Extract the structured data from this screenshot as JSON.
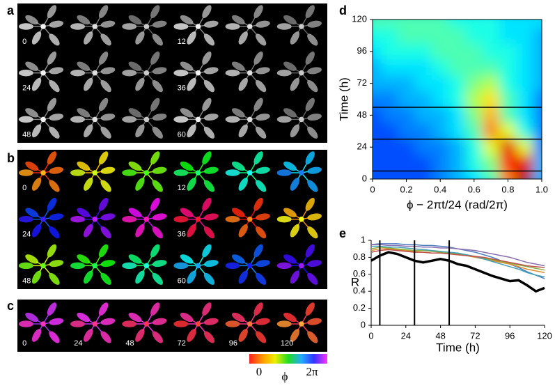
{
  "panels": {
    "a": {
      "label": "a",
      "time_labels": [
        "0",
        "12",
        "24",
        "36",
        "48",
        "60"
      ]
    },
    "b": {
      "label": "b",
      "time_labels": [
        "0",
        "12",
        "24",
        "36",
        "48",
        "60"
      ]
    },
    "c": {
      "label": "c",
      "time_labels": [
        "0",
        "24",
        "48",
        "72",
        "96",
        "120"
      ]
    }
  },
  "colorbar": {
    "min_label": "0",
    "max_label": "2π",
    "symbol": "ϕ"
  },
  "chart_data": [
    {
      "type": "contour",
      "label": "d",
      "xlabel": "ϕ − 2πt/24 (rad/2π)",
      "ylabel": "Time (h)",
      "xlim": [
        0,
        1
      ],
      "xticks": [
        0,
        0.2,
        0.4,
        0.6,
        0.8,
        {
          "value": 1,
          "label": "1.0"
        }
      ],
      "ylim": [
        0,
        120
      ],
      "yticks": [
        0,
        24,
        48,
        72,
        96,
        120
      ],
      "grid_x": [
        0,
        0.1,
        0.2,
        0.3,
        0.4,
        0.5,
        0.6,
        0.7,
        0.8,
        0.9,
        1
      ],
      "grid_y": [
        0,
        12,
        24,
        36,
        48,
        60,
        72,
        84,
        96,
        108,
        120
      ],
      "z": [
        [
          0.2,
          0.2,
          0.2,
          0.2,
          0.25,
          0.3,
          0.35,
          0.45,
          0.75,
          0.95,
          0.3
        ],
        [
          0.2,
          0.2,
          0.2,
          0.2,
          0.25,
          0.3,
          0.4,
          0.5,
          0.85,
          0.9,
          0.3
        ],
        [
          0.2,
          0.2,
          0.2,
          0.25,
          0.25,
          0.3,
          0.4,
          0.6,
          0.9,
          0.6,
          0.25
        ],
        [
          0.2,
          0.2,
          0.25,
          0.25,
          0.3,
          0.35,
          0.45,
          0.75,
          0.6,
          0.4,
          0.25
        ],
        [
          0.2,
          0.25,
          0.25,
          0.3,
          0.3,
          0.35,
          0.5,
          0.7,
          0.45,
          0.35,
          0.25
        ],
        [
          0.25,
          0.25,
          0.3,
          0.3,
          0.35,
          0.4,
          0.55,
          0.65,
          0.45,
          0.35,
          0.25
        ],
        [
          0.3,
          0.3,
          0.3,
          0.35,
          0.35,
          0.4,
          0.5,
          0.55,
          0.4,
          0.35,
          0.3
        ],
        [
          0.3,
          0.35,
          0.35,
          0.35,
          0.4,
          0.45,
          0.45,
          0.45,
          0.4,
          0.35,
          0.3
        ],
        [
          0.35,
          0.4,
          0.4,
          0.4,
          0.45,
          0.45,
          0.45,
          0.4,
          0.4,
          0.35,
          0.3
        ],
        [
          0.4,
          0.4,
          0.45,
          0.45,
          0.45,
          0.45,
          0.4,
          0.4,
          0.35,
          0.35,
          0.3
        ],
        [
          0.45,
          0.45,
          0.45,
          0.45,
          0.45,
          0.4,
          0.4,
          0.4,
          0.35,
          0.35,
          0.35
        ]
      ],
      "hlines": [
        6,
        30,
        54
      ]
    },
    {
      "type": "line",
      "label": "e",
      "xlabel": "Time (h)",
      "ylabel": "R",
      "xlim": [
        0,
        120
      ],
      "xticks": [
        0,
        24,
        48,
        72,
        96,
        120
      ],
      "ylim": [
        0,
        1
      ],
      "yticks": [
        0,
        0.2,
        0.4,
        0.6,
        0.8,
        1
      ],
      "x": [
        0,
        6,
        12,
        18,
        24,
        30,
        36,
        42,
        48,
        54,
        60,
        66,
        72,
        78,
        84,
        90,
        96,
        102,
        108,
        114,
        120
      ],
      "vlines": [
        6,
        30,
        54
      ],
      "series": [
        {
          "color": "#4a7bbf",
          "values": [
            0.95,
            0.96,
            0.96,
            0.96,
            0.95,
            0.95,
            0.94,
            0.94,
            0.93,
            0.92,
            0.9,
            0.88,
            0.86,
            0.83,
            0.8,
            0.76,
            0.72,
            0.68,
            0.63,
            0.59,
            0.55
          ]
        },
        {
          "color": "#e08a2c",
          "values": [
            0.88,
            0.9,
            0.9,
            0.89,
            0.88,
            0.87,
            0.86,
            0.85,
            0.85,
            0.84,
            0.83,
            0.82,
            0.8,
            0.78,
            0.76,
            0.74,
            0.72,
            0.69,
            0.66,
            0.64,
            0.62
          ]
        },
        {
          "color": "#8a6fb0",
          "values": [
            0.95,
            0.95,
            0.94,
            0.94,
            0.93,
            0.93,
            0.92,
            0.92,
            0.91,
            0.91,
            0.9,
            0.89,
            0.88,
            0.86,
            0.84,
            0.82,
            0.8,
            0.77,
            0.74,
            0.72,
            0.7
          ]
        },
        {
          "color": "#8bb040",
          "values": [
            0.9,
            0.92,
            0.91,
            0.9,
            0.89,
            0.88,
            0.88,
            0.87,
            0.86,
            0.85,
            0.84,
            0.83,
            0.81,
            0.79,
            0.77,
            0.75,
            0.73,
            0.71,
            0.69,
            0.67,
            0.65
          ]
        },
        {
          "color": "#40a0b8",
          "values": [
            0.93,
            0.93,
            0.92,
            0.92,
            0.91,
            0.9,
            0.89,
            0.88,
            0.87,
            0.86,
            0.85,
            0.83,
            0.81,
            0.78,
            0.75,
            0.72,
            0.69,
            0.66,
            0.62,
            0.59,
            0.57
          ]
        },
        {
          "color": "#c0504d",
          "values": [
            0.86,
            0.88,
            0.89,
            0.88,
            0.87,
            0.86,
            0.86,
            0.85,
            0.85,
            0.84,
            0.83,
            0.82,
            0.81,
            0.8,
            0.78,
            0.76,
            0.74,
            0.72,
            0.7,
            0.69,
            0.68
          ]
        },
        {
          "color": "#000000",
          "values": [
            0.76,
            0.82,
            0.86,
            0.84,
            0.8,
            0.76,
            0.74,
            0.76,
            0.78,
            0.76,
            0.72,
            0.7,
            0.66,
            0.62,
            0.58,
            0.55,
            0.52,
            0.53,
            0.47,
            0.4,
            0.44
          ]
        }
      ]
    }
  ]
}
